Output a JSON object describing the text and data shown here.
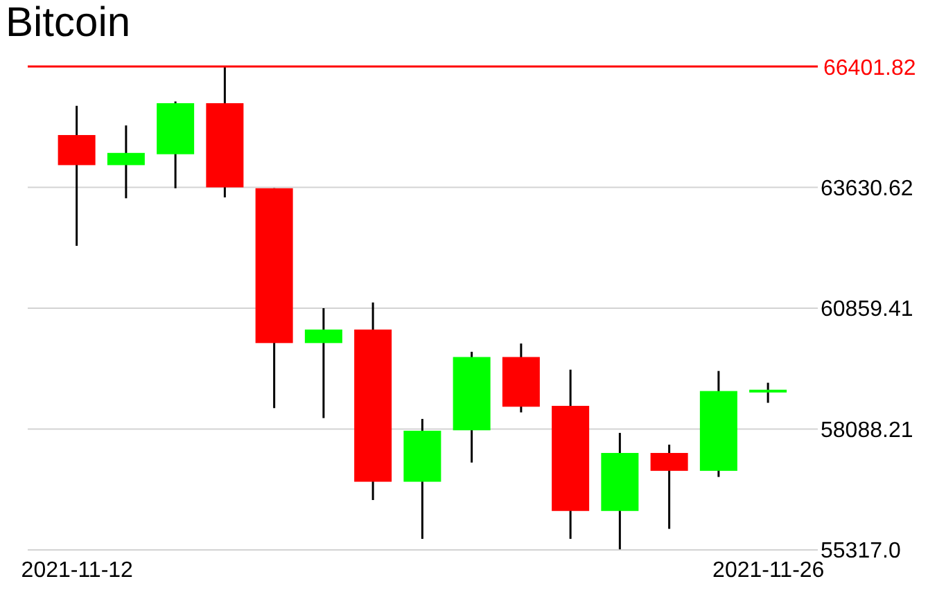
{
  "chart_data": {
    "type": "candlestick",
    "title": "Bitcoin",
    "x": [
      "2021-11-12",
      "2021-11-13",
      "2021-11-14",
      "2021-11-15",
      "2021-11-16",
      "2021-11-17",
      "2021-11-18",
      "2021-11-19",
      "2021-11-20",
      "2021-11-21",
      "2021-11-22",
      "2021-11-23",
      "2021-11-24",
      "2021-11-25",
      "2021-11-26"
    ],
    "ohlc": [
      [
        64830,
        65500,
        62290,
        64140
      ],
      [
        64140,
        65050,
        63380,
        64420
      ],
      [
        64390,
        65600,
        63610,
        65560
      ],
      [
        65560,
        66401.82,
        63400,
        63630
      ],
      [
        63610,
        63610,
        58570,
        60060
      ],
      [
        60060,
        60860,
        58340,
        60370
      ],
      [
        60370,
        60990,
        56460,
        56880
      ],
      [
        56880,
        58320,
        55570,
        58050
      ],
      [
        58060,
        59860,
        57320,
        59740
      ],
      [
        59740,
        60050,
        58470,
        58600
      ],
      [
        58620,
        59450,
        55570,
        56210
      ],
      [
        56210,
        58000,
        55330,
        57540
      ],
      [
        57540,
        57730,
        55800,
        57130
      ],
      [
        57130,
        59420,
        56990,
        58960
      ],
      [
        58970,
        59150,
        58690,
        58990
      ]
    ],
    "colors": [
      "#ff0000",
      "#00ff00",
      "#00ff00",
      "#ff0000",
      "#ff0000",
      "#00ff00",
      "#ff0000",
      "#00ff00",
      "#00ff00",
      "#ff0000",
      "#ff0000",
      "#00ff00",
      "#ff0000",
      "#00ff00",
      "#00ff00"
    ],
    "xlim": [
      "2021-11-11",
      "2021-11-27"
    ],
    "xticks": [
      {
        "value": "2021-11-12",
        "label": "2021-11-12"
      },
      {
        "value": "2021-11-26",
        "label": "2021-11-26"
      }
    ],
    "ylim": [
      55317,
      66401.82
    ],
    "yticks": [
      {
        "value": 55317,
        "label": "55317.0"
      },
      58088.21,
      60859.41,
      63630.62
    ],
    "ref_lines": [
      {
        "axis": "y",
        "value": 66401.82,
        "label": "66401.82",
        "color": "#ff0000"
      }
    ],
    "grid": "y"
  }
}
